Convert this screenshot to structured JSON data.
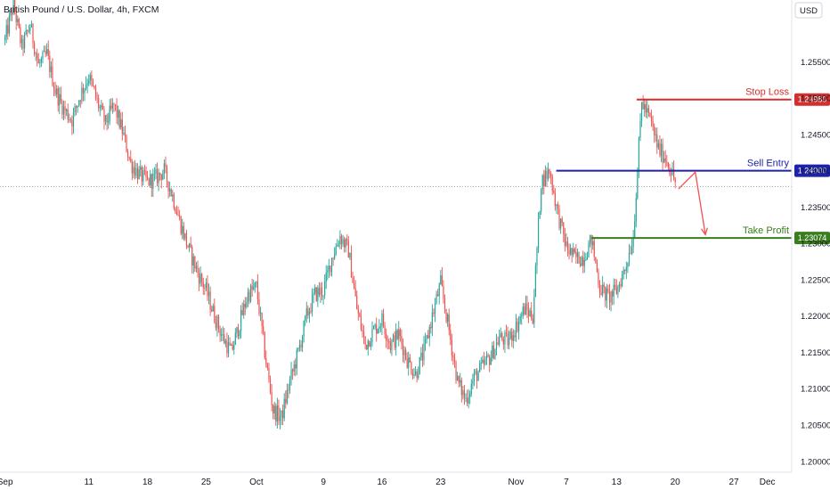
{
  "header": {
    "symbol_title": "British Pound / U.S. Dollar, 4h, FXCM",
    "currency_button": "USD"
  },
  "colors": {
    "up": "#26a69a",
    "down": "#ef5350",
    "stop": "#d32f2f",
    "entry": "#1e22aa",
    "profit": "#3a7d1e",
    "arrow": "#ef5350"
  },
  "chart_data": {
    "type": "candlestick",
    "title": "British Pound / U.S. Dollar, 4h, FXCM",
    "ylim": [
      1.1985,
      1.2635
    ],
    "y_ticks": [
      "1.25500",
      "1.25000",
      "1.24500",
      "1.24000",
      "1.23500",
      "1.23000",
      "1.22500",
      "1.22000",
      "1.21500",
      "1.21000",
      "1.20500",
      "1.20000"
    ],
    "y_tick_values": [
      1.255,
      1.25,
      1.245,
      1.24,
      1.235,
      1.23,
      1.225,
      1.22,
      1.215,
      1.21,
      1.205,
      1.2
    ],
    "x_ticks": [
      {
        "label": "Sep",
        "day": 0
      },
      {
        "label": "11",
        "day": 10
      },
      {
        "label": "18",
        "day": 17
      },
      {
        "label": "25",
        "day": 24
      },
      {
        "label": "Oct",
        "day": 30
      },
      {
        "label": "9",
        "day": 38
      },
      {
        "label": "16",
        "day": 45
      },
      {
        "label": "23",
        "day": 52
      },
      {
        "label": "Nov",
        "day": 61
      },
      {
        "label": "7",
        "day": 67
      },
      {
        "label": "13",
        "day": 73
      },
      {
        "label": "20",
        "day": 80
      },
      {
        "label": "27",
        "day": 87
      },
      {
        "label": "Dec",
        "day": 91
      }
    ],
    "x_range_days": [
      -0.6,
      93.8
    ],
    "current_price": 1.2378,
    "levels": [
      {
        "name": "Stop Loss",
        "value": 1.2498,
        "display": "1.24980",
        "color": "#d32f2f",
        "start_day": 75.4
      },
      {
        "name": "Sell Entry",
        "value": 1.24,
        "display": "1.24000",
        "color": "#1e22aa",
        "start_day": 65.8
      },
      {
        "name": "Take Profit",
        "value": 1.23074,
        "display": "1.23074",
        "color": "#3a7d1e",
        "start_day": 70.0
      }
    ],
    "projection_path": [
      {
        "day": 80.4,
        "price": 1.2375
      },
      {
        "day": 82.4,
        "price": 1.2398
      },
      {
        "day": 83.6,
        "price": 1.2312
      }
    ],
    "price_path": [
      [
        0,
        1.258
      ],
      [
        1,
        1.263
      ],
      [
        2,
        1.257
      ],
      [
        3,
        1.26
      ],
      [
        4,
        1.2545
      ],
      [
        5,
        1.256
      ],
      [
        6,
        1.251
      ],
      [
        7,
        1.2485
      ],
      [
        8,
        1.247
      ],
      [
        9,
        1.2505
      ],
      [
        10,
        1.253
      ],
      [
        11,
        1.2495
      ],
      [
        12,
        1.2465
      ],
      [
        13,
        1.249
      ],
      [
        14,
        1.2455
      ],
      [
        15,
        1.241
      ],
      [
        16,
        1.2395
      ],
      [
        17,
        1.2385
      ],
      [
        18,
        1.239
      ],
      [
        19,
        1.24
      ],
      [
        20,
        1.2365
      ],
      [
        21,
        1.2325
      ],
      [
        22,
        1.229
      ],
      [
        23,
        1.226
      ],
      [
        24,
        1.2235
      ],
      [
        25,
        1.22
      ],
      [
        26,
        1.217
      ],
      [
        27,
        1.215
      ],
      [
        28,
        1.219
      ],
      [
        29,
        1.223
      ],
      [
        30,
        1.224
      ],
      [
        31,
        1.215
      ],
      [
        32,
        1.207
      ],
      [
        33,
        1.206
      ],
      [
        34,
        1.211
      ],
      [
        35,
        1.215
      ],
      [
        36,
        1.22
      ],
      [
        37,
        1.223
      ],
      [
        38,
        1.2235
      ],
      [
        39,
        1.228
      ],
      [
        40,
        1.231
      ],
      [
        41,
        1.229
      ],
      [
        42,
        1.221
      ],
      [
        43,
        1.216
      ],
      [
        44,
        1.218
      ],
      [
        45,
        1.2195
      ],
      [
        46,
        1.216
      ],
      [
        47,
        1.2175
      ],
      [
        48,
        1.214
      ],
      [
        49,
        1.212
      ],
      [
        50,
        1.215
      ],
      [
        51,
        1.22
      ],
      [
        52,
        1.2245
      ],
      [
        53,
        1.218
      ],
      [
        54,
        1.211
      ],
      [
        55,
        1.2085
      ],
      [
        56,
        1.2115
      ],
      [
        57,
        1.213
      ],
      [
        58,
        1.2145
      ],
      [
        59,
        1.217
      ],
      [
        60,
        1.2165
      ],
      [
        61,
        1.2185
      ],
      [
        62,
        1.221
      ],
      [
        63,
        1.22
      ],
      [
        64,
        1.2385
      ],
      [
        65,
        1.24
      ],
      [
        66,
        1.234
      ],
      [
        67,
        1.2295
      ],
      [
        68,
        1.228
      ],
      [
        69,
        1.228
      ],
      [
        70,
        1.2305
      ],
      [
        71,
        1.224
      ],
      [
        72,
        1.2225
      ],
      [
        73,
        1.2235
      ],
      [
        74,
        1.2265
      ],
      [
        75,
        1.231
      ],
      [
        76,
        1.2495
      ],
      [
        77,
        1.247
      ],
      [
        78,
        1.243
      ],
      [
        79,
        1.2415
      ],
      [
        80,
        1.2385
      ]
    ]
  }
}
